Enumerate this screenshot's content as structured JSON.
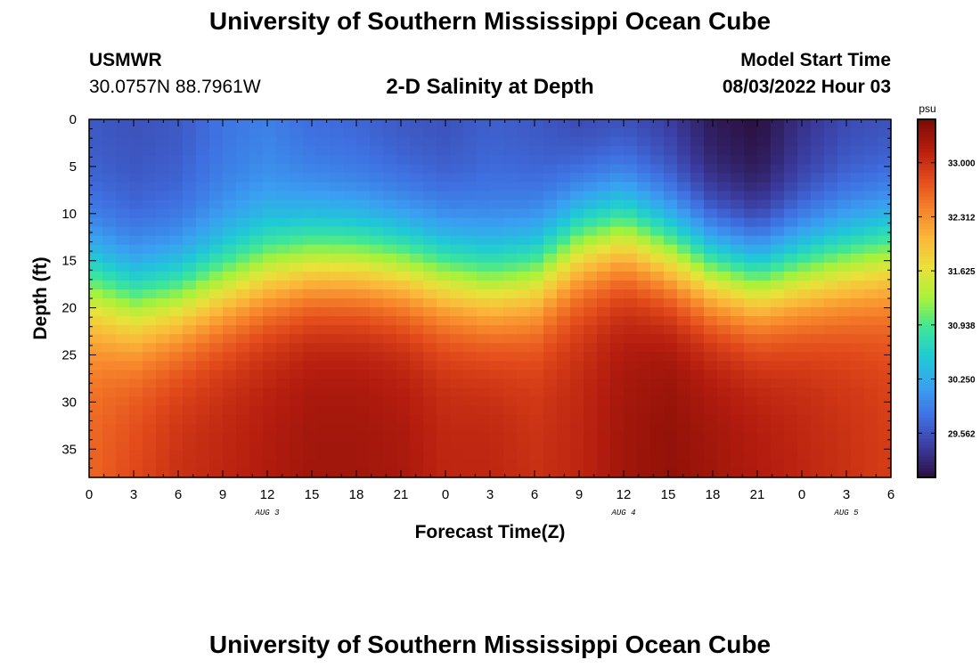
{
  "header": {
    "title_top": "University of Southern Mississippi Ocean Cube",
    "title_bottom": "University of Southern Mississippi Ocean Cube",
    "station_id": "USMWR",
    "coords": "30.0757N  88.7961W",
    "plot_title": "2-D Salinity at Depth",
    "model_start_label": "Model Start Time",
    "model_start_value": "08/03/2022 Hour 03"
  },
  "chart_data": {
    "type": "heatmap",
    "title": "2-D Salinity at Depth",
    "xlabel": "Forecast Time(Z)",
    "ylabel": "Depth (ft)",
    "x_tick_labels": [
      "0",
      "3",
      "6",
      "9",
      "12",
      "15",
      "18",
      "21",
      "0",
      "3",
      "6",
      "9",
      "12",
      "15",
      "18",
      "21",
      "0",
      "3",
      "6"
    ],
    "date_labels": [
      {
        "label": "AUG 3",
        "tick_index": 4
      },
      {
        "label": "AUG 4",
        "tick_index": 12
      },
      {
        "label": "AUG 5",
        "tick_index": 17
      }
    ],
    "y_ticks": [
      0,
      5,
      10,
      15,
      20,
      25,
      30,
      35
    ],
    "ylim": [
      0,
      38
    ],
    "xlim_hours": [
      0,
      54
    ],
    "colorbar": {
      "unit": "psu",
      "ticks": [
        "33.000",
        "32.312",
        "31.625",
        "30.938",
        "30.250",
        "29.562"
      ],
      "tick_values": [
        33.0,
        32.312,
        31.625,
        30.938,
        30.25,
        29.562
      ],
      "range": [
        29.0,
        33.55
      ],
      "colors": [
        "#2a1040",
        "#3b3b9e",
        "#3f6fe0",
        "#3a9ff2",
        "#1fc9d6",
        "#3ce69a",
        "#a6f23a",
        "#e8e23a",
        "#fbb83a",
        "#f6822a",
        "#e24a1b",
        "#b51d0f",
        "#7a0a04"
      ]
    },
    "profiles": {
      "hours": [
        0,
        3,
        6,
        9,
        12,
        15,
        18,
        21,
        24,
        27,
        30,
        33,
        36,
        39,
        42,
        45,
        48,
        51,
        54
      ],
      "transition_depth": [
        17.5,
        19.5,
        19,
        17.5,
        16,
        15,
        15,
        15.5,
        16.5,
        17.5,
        16.5,
        13,
        12,
        14,
        16,
        17,
        16,
        15,
        14
      ],
      "surface_value": [
        29.6,
        29.55,
        29.6,
        29.8,
        29.9,
        29.75,
        29.7,
        29.6,
        29.55,
        29.65,
        29.6,
        29.5,
        29.55,
        29.4,
        29.1,
        29.0,
        29.3,
        29.5,
        29.55
      ],
      "bottom_value": [
        32.6,
        32.8,
        33.0,
        33.1,
        33.2,
        33.3,
        33.3,
        33.25,
        33.1,
        33.1,
        33.0,
        33.1,
        33.3,
        33.4,
        33.3,
        33.2,
        33.1,
        33.0,
        32.9
      ]
    }
  }
}
